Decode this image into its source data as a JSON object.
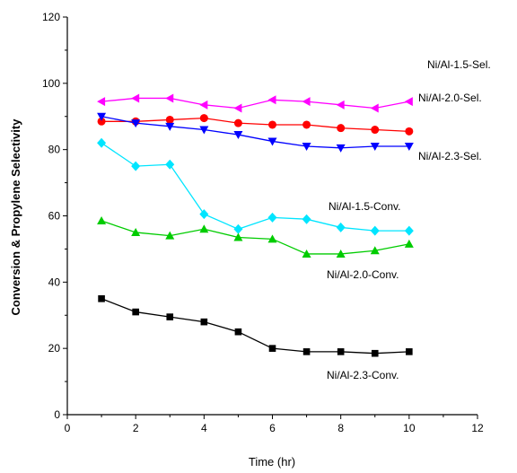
{
  "chart_data": {
    "type": "line",
    "title": "",
    "xlabel": "Time (hr)",
    "ylabel": "Conversion & Propylene Selectivity",
    "xlim": [
      0,
      12
    ],
    "ylim": [
      0,
      120
    ],
    "xticks": [
      "0",
      "2",
      "4",
      "6",
      "8",
      "10",
      "12"
    ],
    "yticks": [
      "0",
      "20",
      "40",
      "60",
      "80",
      "100",
      "120"
    ],
    "grid": false,
    "x": [
      1,
      2,
      3,
      4,
      5,
      6,
      7,
      8,
      9,
      10
    ],
    "series": [
      {
        "name": "Ni/Al-1.5-Sel.",
        "color": "#ff00ff",
        "marker": "triangle-left",
        "values": [
          94.5,
          95.5,
          95.5,
          93.5,
          92.5,
          95,
          94.5,
          93.5,
          92.5,
          94.5
        ]
      },
      {
        "name": "Ni/Al-2.0-Sel.",
        "color": "#ff0000",
        "marker": "circle",
        "values": [
          88.5,
          88.5,
          89,
          89.5,
          88,
          87.5,
          87.5,
          86.5,
          86,
          85.5
        ]
      },
      {
        "name": "Ni/Al-2.3-Sel.",
        "color": "#0000ff",
        "marker": "triangle-down",
        "values": [
          90,
          88,
          87,
          86,
          84.5,
          82.5,
          81,
          80.5,
          81,
          81
        ]
      },
      {
        "name": "Ni/Al-1.5-Conv.",
        "color": "#00e5ff",
        "marker": "diamond",
        "values": [
          82,
          75,
          75.5,
          60.5,
          56,
          59.5,
          59,
          56.5,
          55.5,
          55.5
        ]
      },
      {
        "name": "Ni/Al-2.0-Conv.",
        "color": "#00cc00",
        "marker": "triangle-up",
        "values": [
          58.5,
          55,
          54,
          56,
          53.5,
          53,
          48.5,
          48.5,
          49.5,
          51.5
        ]
      },
      {
        "name": "Ni/Al-2.3-Conv.",
        "color": "#000000",
        "marker": "square",
        "values": [
          35,
          31,
          29.5,
          28,
          25,
          20,
          19,
          19,
          18.5,
          19
        ]
      }
    ]
  }
}
